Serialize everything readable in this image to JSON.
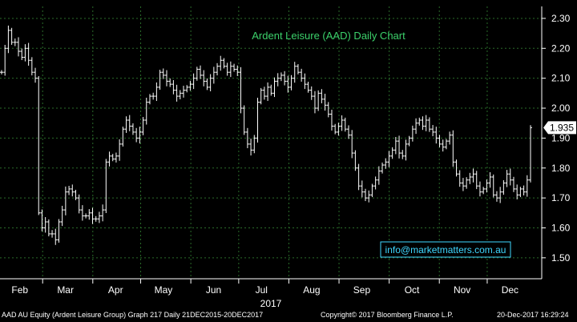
{
  "chart_data": {
    "type": "ohlc",
    "title": "Ardent Leisure (AAD) Daily Chart",
    "ylim": [
      1.43,
      2.34
    ],
    "y_ticks": [
      "2.30",
      "2.20",
      "2.10",
      "2.00",
      "1.90",
      "1.80",
      "1.70",
      "1.60",
      "1.50"
    ],
    "y_tick_values": [
      2.3,
      2.2,
      2.1,
      2.0,
      1.9,
      1.8,
      1.7,
      1.6,
      1.5
    ],
    "last_price_label": "1.935",
    "last_price": 1.935,
    "months": [
      "Feb",
      "Mar",
      "Apr",
      "May",
      "Jun",
      "Jul",
      "Aug",
      "Sep",
      "Oct",
      "Nov",
      "Dec"
    ],
    "year_label": "2017",
    "x_range": [
      0,
      232
    ],
    "month_positions": [
      8,
      28,
      50,
      71,
      93,
      114,
      136,
      158,
      180,
      202,
      223
    ],
    "closes": [
      2.12,
      2.2,
      2.26,
      2.22,
      2.22,
      2.19,
      2.17,
      2.2,
      2.16,
      2.12,
      2.1,
      1.65,
      1.6,
      1.62,
      1.58,
      1.58,
      1.56,
      1.62,
      1.66,
      1.72,
      1.73,
      1.72,
      1.7,
      1.66,
      1.64,
      1.64,
      1.65,
      1.63,
      1.63,
      1.64,
      1.66,
      1.82,
      1.84,
      1.83,
      1.84,
      1.88,
      1.93,
      1.96,
      1.94,
      1.92,
      1.9,
      1.92,
      1.96,
      2.02,
      2.04,
      2.04,
      2.07,
      2.12,
      2.11,
      2.09,
      2.08,
      2.06,
      2.04,
      2.05,
      2.06,
      2.07,
      2.08,
      2.1,
      2.13,
      2.11,
      2.09,
      2.07,
      2.1,
      2.12,
      2.14,
      2.16,
      2.14,
      2.12,
      2.14,
      2.13,
      2.12,
      2.0,
      1.92,
      1.88,
      1.86,
      1.9,
      2.02,
      2.06,
      2.04,
      2.07,
      2.05,
      2.09,
      2.1,
      2.11,
      2.09,
      2.07,
      2.1,
      2.14,
      2.12,
      2.1,
      2.08,
      2.06,
      2.04,
      2.0,
      2.05,
      2.03,
      2.01,
      1.98,
      1.94,
      1.92,
      1.94,
      1.96,
      1.93,
      1.91,
      1.85,
      1.8,
      1.74,
      1.72,
      1.7,
      1.71,
      1.74,
      1.76,
      1.79,
      1.81,
      1.82,
      1.84,
      1.86,
      1.89,
      1.85,
      1.84,
      1.88,
      1.9,
      1.93,
      1.95,
      1.96,
      1.94,
      1.96,
      1.93,
      1.92,
      1.9,
      1.88,
      1.87,
      1.89,
      1.91,
      1.82,
      1.78,
      1.75,
      1.74,
      1.76,
      1.77,
      1.78,
      1.74,
      1.72,
      1.73,
      1.75,
      1.77,
      1.71,
      1.7,
      1.72,
      1.75,
      1.78,
      1.76,
      1.73,
      1.71,
      1.73,
      1.72,
      1.76,
      1.935
    ],
    "series_color": "#ffffff"
  },
  "contact_box": {
    "text": "info@marketmatters.com.au",
    "border_color": "#3fd7ff",
    "text_color": "#3fd7ff"
  },
  "footer": {
    "left": "AAD AU Equity (Ardent Leisure Group) Graph 217  Daily 21DEC2015-20DEC2017",
    "center": "Copyright© 2017 Bloomberg Finance L.P.",
    "right": "20-Dec-2017 16:29:24"
  },
  "colors": {
    "background": "#000000",
    "title": "#3cd16b",
    "grid": "#2a6b2a",
    "text": "#ffffff"
  }
}
